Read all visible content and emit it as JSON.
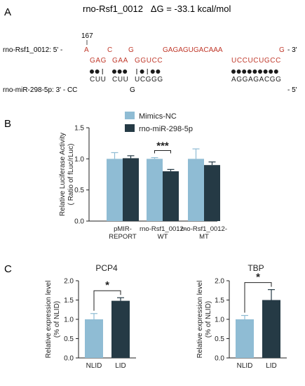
{
  "panel_a": {
    "label": "A",
    "title": "rno-Rsf1_0012   ΔG = -33.1 kcal/mol",
    "position_marker": "167",
    "rsf1_label": "rno-Rsf1_0012: 5' -",
    "rsf1_end": "- 3'",
    "rsf1_bulges": {
      "b1": "A",
      "b2": "C",
      "b3": "G",
      "b4": "GAGAGUGACAAA",
      "b5": "G"
    },
    "rsf1_paired": {
      "s1": "GAG",
      "s2": "GAA",
      "s3": "GGUCC",
      "s4": "UCCUCUGCC"
    },
    "mir_label": "rno-miR-298-5p: 3' - CC",
    "mir_end": "- 5'",
    "mir_paired": {
      "s1": "CUU",
      "s2": "CUU",
      "s3": "UCGGG",
      "s4": "AGGAGACGG"
    },
    "mir_bulge": "G",
    "pairing_marks": {
      "s1": [
        "dot",
        "dot",
        "bar"
      ],
      "s2": [
        "dot",
        "dot",
        "dot"
      ],
      "s3": [
        "bar",
        "dot",
        "bar",
        "dot",
        "dot"
      ],
      "s4": [
        "dot",
        "dot",
        "dot",
        "dot",
        "dot",
        "dot",
        "dot",
        "dot",
        "dot"
      ]
    }
  },
  "panel_b": {
    "label": "B"
  },
  "panel_c": {
    "label": "C"
  },
  "chart_data": [
    {
      "type": "bar",
      "ylabel_line1": "Relative Luciferase Activity",
      "ylabel_line2": "( Ratio of fLuc/rLuc)",
      "ylim": [
        0,
        1.5
      ],
      "yticks": [
        "0.0",
        "0.5",
        "1.0",
        "1.5"
      ],
      "categories": [
        [
          "pMIR-",
          "REPORT"
        ],
        [
          "rno-Rsf1_0012-",
          "WT"
        ],
        [
          "rno-Rsf1_0012-",
          "MT"
        ]
      ],
      "series": [
        {
          "name": "Mimics-NC",
          "color": "#8fbcd4",
          "values": [
            1.0,
            1.0,
            1.0
          ],
          "errors": [
            0.1,
            0.02,
            0.16
          ]
        },
        {
          "name": "rno-miR-298-5p",
          "color": "#253a45",
          "values": [
            1.01,
            0.8,
            0.9
          ],
          "errors": [
            0.04,
            0.03,
            0.05
          ]
        }
      ],
      "legend_position": "top-right",
      "significance": {
        "label": "***",
        "category_index": 1
      }
    },
    {
      "type": "bar",
      "title": "PCP4",
      "ylabel_line1": "Relative expression level",
      "ylabel_line2": "(% of NLID)",
      "ylim": [
        0,
        2.0
      ],
      "yticks": [
        "0.0",
        "0.5",
        "1.0",
        "1.5",
        "2.0"
      ],
      "categories": [
        "NLID",
        "LID"
      ],
      "values": [
        1.0,
        1.48
      ],
      "errors": [
        0.15,
        0.08
      ],
      "colors": [
        "#8fbcd4",
        "#253a45"
      ],
      "significance": {
        "label": "*"
      }
    },
    {
      "type": "bar",
      "title": "TBP",
      "ylabel_line1": "Relative expression level",
      "ylabel_line2": "(% of NLID)",
      "ylim": [
        0,
        2.0
      ],
      "yticks": [
        "0.0",
        "0.5",
        "1.0",
        "1.5",
        "2.0"
      ],
      "categories": [
        "NLID",
        "LID"
      ],
      "values": [
        1.0,
        1.5
      ],
      "errors": [
        0.1,
        0.27
      ],
      "colors": [
        "#8fbcd4",
        "#253a45"
      ],
      "significance": {
        "label": "*"
      }
    }
  ]
}
